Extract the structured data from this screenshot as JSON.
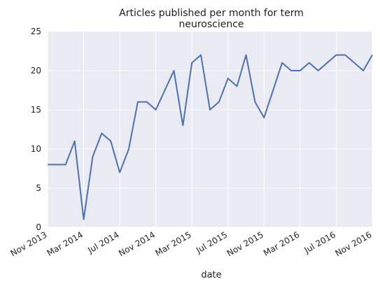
{
  "chart_data": {
    "type": "line",
    "title": "Articles published per month for term",
    "subtitle": "neuroscience",
    "xlabel": "date",
    "ylabel": "",
    "ylim": [
      0,
      25
    ],
    "yticks": [
      0,
      5,
      10,
      15,
      20,
      25
    ],
    "xlim": [
      "2013-11",
      "2016-11"
    ],
    "xticks": [
      {
        "date": "2013-11",
        "label": "Nov 2013"
      },
      {
        "date": "2014-03",
        "label": "Mar 2014"
      },
      {
        "date": "2014-07",
        "label": "Jul 2014"
      },
      {
        "date": "2014-11",
        "label": "Nov 2014"
      },
      {
        "date": "2015-03",
        "label": "Mar 2015"
      },
      {
        "date": "2015-07",
        "label": "Jul 2015"
      },
      {
        "date": "2015-11",
        "label": "Nov 2015"
      },
      {
        "date": "2016-03",
        "label": "Mar 2016"
      },
      {
        "date": "2016-07",
        "label": "Jul 2016"
      },
      {
        "date": "2016-11",
        "label": "Nov 2016"
      }
    ],
    "grid": true,
    "background": "#eaeaf2",
    "series": [
      {
        "color": "#4c72b0",
        "x": [
          "2013-11",
          "2013-12",
          "2014-01",
          "2014-02",
          "2014-03",
          "2014-04",
          "2014-05",
          "2014-06",
          "2014-07",
          "2014-08",
          "2014-09",
          "2014-10",
          "2014-11",
          "2014-12",
          "2015-01",
          "2015-02",
          "2015-03",
          "2015-04",
          "2015-05",
          "2015-06",
          "2015-07",
          "2015-08",
          "2015-09",
          "2015-10",
          "2015-11",
          "2015-12",
          "2016-01",
          "2016-02",
          "2016-03",
          "2016-04",
          "2016-05",
          "2016-06",
          "2016-07",
          "2016-08",
          "2016-09",
          "2016-10",
          "2016-11"
        ],
        "y": [
          8,
          8,
          8,
          11,
          1,
          9,
          12,
          11,
          7,
          10,
          16,
          16,
          15,
          null,
          20,
          13,
          21,
          22,
          15,
          16,
          19,
          18,
          22,
          16,
          14,
          null,
          21,
          20,
          20,
          21,
          20,
          null,
          22,
          22,
          null,
          20,
          22
        ]
      }
    ]
  }
}
